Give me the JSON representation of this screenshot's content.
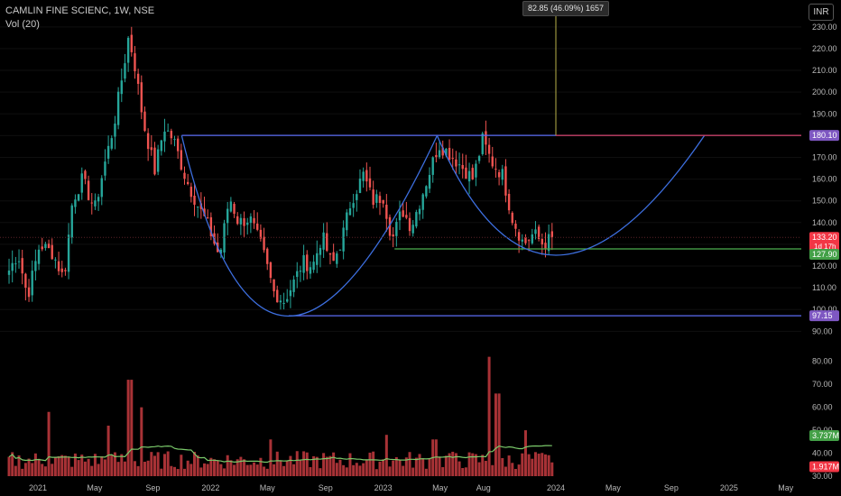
{
  "header": {
    "symbol": "CAMLIN FINE SCIENC, 1W, NSE",
    "volume_indicator": "Vol (20)",
    "currency": "INR"
  },
  "measure_tooltip": "82.85 (46.09%) 1657",
  "colors": {
    "up": "#26a69a",
    "down": "#ef5350",
    "volume_bar": "#a83236",
    "volume_ma": "#7ac96a",
    "pattern_line": "#5b6cf5",
    "cup_curve": "#3d6fe0",
    "support_line": "#4caf50",
    "measure_line": "#b8b04a",
    "resistance_badge": "#7e57c2",
    "price_badge": "#f23645",
    "support_badge": "#43a047"
  },
  "chart_data": [
    {
      "type": "candlestick",
      "title": "CAMLIN FINE SCIENC, 1W, NSE",
      "x_ticks": [
        "2021",
        "May",
        "Sep",
        "2022",
        "May",
        "Sep",
        "2023",
        "May",
        "Aug",
        "2024",
        "May",
        "Sep",
        "2025",
        "May"
      ],
      "y_ticks": [
        90,
        100,
        110,
        120,
        130,
        140,
        150,
        160,
        170,
        180,
        190,
        200,
        210,
        220,
        230
      ],
      "y_tick_labels": [
        "90.00",
        "100.00",
        "110.00",
        "120.00",
        "130.00",
        "140.00",
        "150.00",
        "160.00",
        "170.00",
        "180.00",
        "190.00",
        "200.00",
        "210.00",
        "220.00",
        "230.00"
      ],
      "ylim": [
        86,
        232
      ],
      "close_path": [
        [
          "2020-11-01",
          118
        ],
        [
          "2020-11-20",
          126
        ],
        [
          "2020-12-10",
          106
        ],
        [
          "2021-01-05",
          130
        ],
        [
          "2021-02-01",
          126
        ],
        [
          "2021-02-25",
          114
        ],
        [
          "2021-03-15",
          150
        ],
        [
          "2021-04-05",
          160
        ],
        [
          "2021-05-01",
          146
        ],
        [
          "2021-05-20",
          165
        ],
        [
          "2021-06-10",
          184
        ],
        [
          "2021-06-28",
          207
        ],
        [
          "2021-07-12",
          226
        ],
        [
          "2021-07-25",
          212
        ],
        [
          "2021-08-12",
          186
        ],
        [
          "2021-09-05",
          164
        ],
        [
          "2021-09-25",
          184
        ],
        [
          "2021-10-15",
          178
        ],
        [
          "2021-11-10",
          160
        ],
        [
          "2021-12-05",
          148
        ],
        [
          "2021-12-28",
          138
        ],
        [
          "2022-01-20",
          124
        ],
        [
          "2022-02-10",
          152
        ],
        [
          "2022-03-01",
          140
        ],
        [
          "2022-03-25",
          142
        ],
        [
          "2022-04-20",
          128
        ],
        [
          "2022-05-15",
          108
        ],
        [
          "2022-06-05",
          104
        ],
        [
          "2022-06-25",
          112
        ],
        [
          "2022-07-15",
          122
        ],
        [
          "2022-08-05",
          120
        ],
        [
          "2022-08-25",
          134
        ],
        [
          "2022-09-15",
          120
        ],
        [
          "2022-10-05",
          132
        ],
        [
          "2022-10-25",
          150
        ],
        [
          "2022-11-20",
          162
        ],
        [
          "2022-12-10",
          150
        ],
        [
          "2023-01-01",
          152
        ],
        [
          "2023-01-20",
          132
        ],
        [
          "2023-02-10",
          146
        ],
        [
          "2023-03-01",
          138
        ],
        [
          "2023-03-20",
          150
        ],
        [
          "2023-04-10",
          164
        ],
        [
          "2023-04-28",
          176
        ],
        [
          "2023-05-20",
          172
        ],
        [
          "2023-06-15",
          166
        ],
        [
          "2023-07-10",
          160
        ],
        [
          "2023-07-30",
          178
        ],
        [
          "2023-08-18",
          168
        ],
        [
          "2023-09-10",
          162
        ],
        [
          "2023-10-01",
          142
        ],
        [
          "2023-10-25",
          130
        ],
        [
          "2023-11-15",
          135
        ],
        [
          "2023-12-05",
          130
        ],
        [
          "2023-12-25",
          133.2
        ]
      ],
      "annotations": {
        "resistance": {
          "value": 180.1,
          "label": "180.10",
          "from": "2021-11-01",
          "to": "2025-02-20"
        },
        "neckline_support": {
          "value": 127.9,
          "label": "127.90",
          "from": "2023-01-25",
          "to": "2025-02-20"
        },
        "cup_bottom": {
          "value": 97.15,
          "label": "97.15",
          "from": "2022-06-15",
          "to": "2025-02-20"
        },
        "last_price": {
          "value": 133.2,
          "label": "133.20",
          "countdown": "1d 17h"
        },
        "cup_curve_1": [
          [
            "2021-11-01",
            180
          ],
          [
            "2022-06-15",
            97
          ],
          [
            "2023-04-25",
            180
          ]
        ],
        "cup_curve_2": [
          [
            "2023-04-25",
            180
          ],
          [
            "2024-01-01",
            125
          ],
          [
            "2024-11-10",
            180
          ]
        ],
        "measure": {
          "from_value": 180.1,
          "to_value": 232,
          "date": "2024-01-01"
        }
      }
    },
    {
      "type": "bar",
      "title": "Vol (20)",
      "y_ticks": [
        30,
        40,
        50,
        60,
        70,
        80
      ],
      "y_tick_labels": [
        "30.00",
        "40.00",
        "50.00",
        "60.00",
        "70.00",
        "80.00"
      ],
      "ylim": [
        30,
        85
      ],
      "volume_ma": 3.737,
      "volume_ma_label": "3.737M",
      "last_volume": 1.917,
      "last_volume_label": "1.917M",
      "spikes": [
        [
          "2021-07-15",
          72
        ],
        [
          "2021-08-10",
          60
        ],
        [
          "2021-01-25",
          58
        ],
        [
          "2021-06-01",
          52
        ],
        [
          "2022-05-10",
          46
        ],
        [
          "2023-01-10",
          48
        ],
        [
          "2023-04-20",
          46
        ],
        [
          "2023-08-15",
          82
        ],
        [
          "2023-08-30",
          66
        ],
        [
          "2023-10-30",
          50
        ],
        [
          "2023-05-20",
          40
        ]
      ]
    }
  ]
}
